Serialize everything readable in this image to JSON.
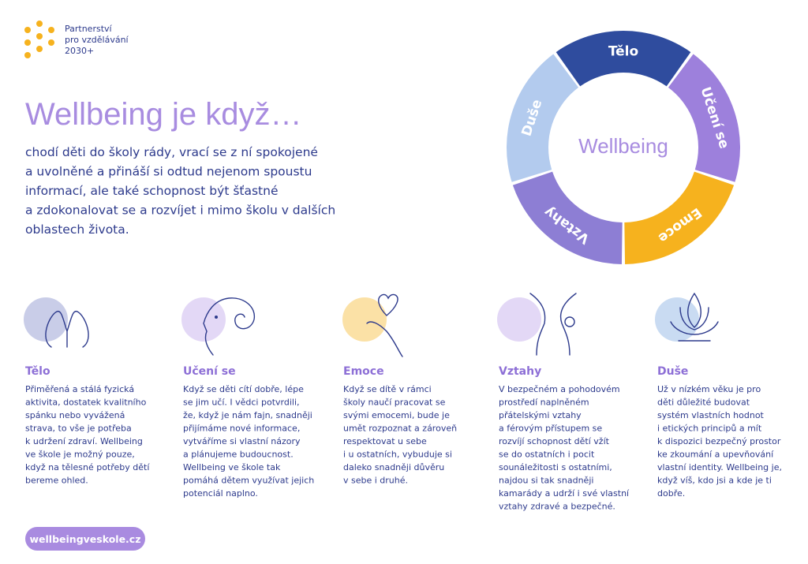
{
  "logo": {
    "lines": [
      "Partnerství",
      "pro vzdělávání",
      "2030+"
    ]
  },
  "title": "Wellbeing je když…",
  "intro": {
    "lines": [
      "chodí děti do školy rády, vrací se z ní spokojené",
      "a uvolněné a přináší si odtud nejenom spoustu",
      "informací, ale také schopnost být šťastné",
      "a zdokonalovat se a rozvíjet i mimo školu v dalších",
      "oblastech života."
    ]
  },
  "wheel": {
    "center": "Wellbeing",
    "segments": [
      {
        "label": "Tělo",
        "color": "#2f4c9e"
      },
      {
        "label": "Učení se",
        "color": "#9d80dc"
      },
      {
        "label": "Emoce",
        "color": "#f6b21e"
      },
      {
        "label": "Vztahy",
        "color": "#8d7ed4"
      },
      {
        "label": "Duše",
        "color": "#b3cbee"
      }
    ]
  },
  "columns": [
    {
      "title": "Tělo",
      "lines": [
        "Přiměřená a stálá fyzická",
        "aktivita, dostatek kvalitního",
        "spánku nebo vyvážená",
        "strava, to vše je potřeba",
        "k udržení zdraví. Wellbeing",
        "ve škole je možný pouze,",
        "když na tělesné potřeby dětí",
        "bereme ohled."
      ]
    },
    {
      "title": "Učení se",
      "lines": [
        "Když se děti cítí dobře, lépe",
        "se jim učí. I vědci potvrdili,",
        "že, když je nám fajn, snadněji",
        "přijímáme nové informace,",
        "vytváříme si vlastní názory",
        "a plánujeme budoucnost.",
        "Wellbeing ve škole tak",
        "pomáhá dětem využívat jejich",
        "potenciál naplno."
      ]
    },
    {
      "title": "Emoce",
      "lines": [
        "Když se dítě v rámci",
        "školy naučí pracovat se",
        "svými emocemi, bude je",
        "umět rozpoznat a zároveň",
        "respektovat u sebe",
        "i u ostatních, vybuduje si",
        "daleko snadněji důvěru",
        "v sebe i druhé."
      ]
    },
    {
      "title": "Vztahy",
      "lines": [
        "V bezpečném a pohodovém",
        "prostředí naplněném",
        "přátelskými vztahy",
        "a férovým přístupem se",
        "rozvíjí schopnost dětí vžít",
        "se do ostatních i pocit",
        "sounáležitosti s ostatními,",
        "najdou si tak snadněji",
        "kamarády a udrží i své vlastní",
        "vztahy zdravé a bezpečné."
      ]
    },
    {
      "title": "Duše",
      "lines": [
        "Už v nízkém věku je pro",
        "děti důležité budovat",
        "systém vlastních hodnot",
        "i etických principů a mít",
        "k dispozici bezpečný prostor",
        "ke zkoumání a upevňování",
        "vlastní identity. Wellbeing je,",
        "když víš, kdo jsi a kde je ti",
        "dobře."
      ]
    }
  ],
  "footer": {
    "link": "wellbeingveskole.cz"
  }
}
